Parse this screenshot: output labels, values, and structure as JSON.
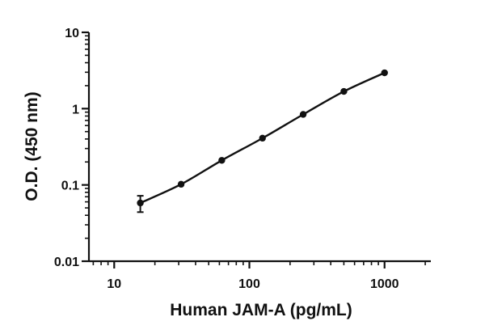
{
  "chart_data": {
    "type": "scatter",
    "xlabel": "Human JAM-A (pg/mL)",
    "ylabel": "O.D. (450 nm)",
    "x_scale": "log",
    "y_scale": "log",
    "xlim": [
      6.5,
      2200
    ],
    "ylim": [
      0.01,
      10
    ],
    "x_ticks": [
      10,
      100,
      1000
    ],
    "x_tick_labels": [
      "10",
      "100",
      "1000"
    ],
    "y_ticks": [
      0.01,
      0.1,
      1,
      10
    ],
    "y_tick_labels": [
      "0.01",
      "0.1",
      "1",
      "10"
    ],
    "grid": false,
    "legend": "none",
    "series": [
      {
        "x": [
          15.6,
          31.25,
          62.5,
          125,
          250,
          500,
          1000
        ],
        "y": [
          0.058,
          0.102,
          0.21,
          0.41,
          0.84,
          1.68,
          2.95
        ],
        "y_err": [
          0.014,
          0,
          0,
          0,
          0,
          0,
          0
        ],
        "color": "#111111",
        "fit_curve": true
      }
    ]
  }
}
